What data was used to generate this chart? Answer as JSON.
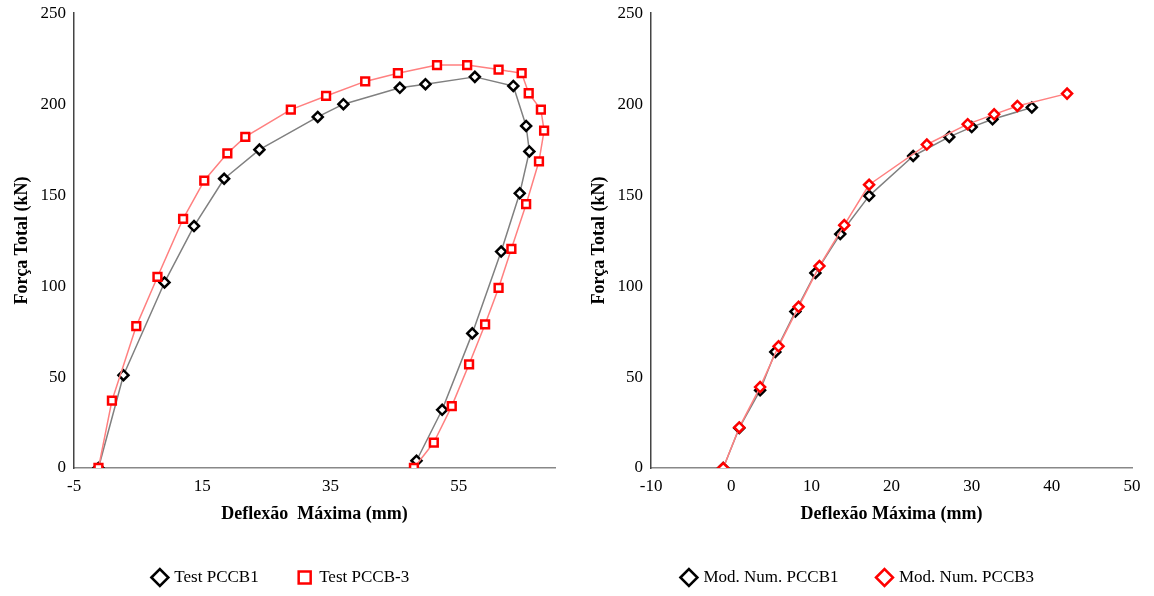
{
  "chart_data": [
    {
      "type": "line",
      "xlabel": "Deflexão  Máxima (mm)",
      "ylabel": "Força Total (kN)",
      "xlim": [
        -5,
        70
      ],
      "xticks": [
        -5,
        15,
        35,
        55
      ],
      "ylim": [
        0,
        250
      ],
      "yticks": [
        0,
        50,
        100,
        150,
        200,
        250
      ],
      "grid": false,
      "legend": "bottom",
      "line_style": "solid",
      "series": [
        {
          "name": "Test PCCB1",
          "color": "#808080",
          "colors": [
            "#000000",
            "#000000",
            "#000000",
            "#000000",
            "#000000",
            "#000000",
            "#000000",
            "#000000",
            "#000000",
            "#000000",
            "#000000",
            "#000000",
            "#000000",
            "#000000",
            "#000000",
            "#000000",
            "#000000",
            "#000000",
            "#000000"
          ],
          "marker": "diamond",
          "x": [
            -1.2,
            2.7,
            9.1,
            13.7,
            18.4,
            23.9,
            33.0,
            37.0,
            45.8,
            49.8,
            57.5,
            63.5,
            65.5,
            66.0,
            64.5,
            61.6,
            57.1,
            52.4,
            48.4
          ],
          "values": [
            0,
            51,
            102,
            133,
            159,
            175,
            193,
            200,
            209,
            211,
            215,
            210,
            188,
            174,
            151,
            119,
            74,
            32,
            4
          ]
        },
        {
          "name": "Test PCCB-3",
          "color": "#ff8080",
          "colors": [
            "#ff0000",
            "#ff0000",
            "#ff0000",
            "#ff0000",
            "#ff0000",
            "#ff0000",
            "#ff0000",
            "#ff0000",
            "#ff0000",
            "#ff0000",
            "#ff0000",
            "#ff0000",
            "#ff0000",
            "#ff0000",
            "#ff0000",
            "#ff0000",
            "#ff0000",
            "#ff0000",
            "#ff0000",
            "#ff0000",
            "#ff0000",
            "#ff0000",
            "#ff0000",
            "#ff0000",
            "#ff0000",
            "#ff0000",
            "#ff0000",
            "#ff0000"
          ],
          "marker": "square",
          "x": [
            -1.2,
            0.9,
            4.7,
            8.0,
            12.0,
            15.3,
            18.9,
            21.7,
            28.8,
            34.3,
            40.4,
            45.5,
            51.6,
            56.3,
            61.2,
            64.8,
            65.9,
            67.8,
            68.3,
            67.5,
            65.5,
            63.2,
            61.2,
            59.1,
            56.6,
            53.9,
            51.1,
            48.0
          ],
          "values": [
            0,
            37,
            78,
            105,
            137,
            158,
            173,
            182,
            197,
            204.5,
            212.5,
            217,
            221.5,
            221.5,
            219,
            217,
            206,
            197,
            185.5,
            168.6,
            145,
            120.5,
            99,
            79,
            57,
            34,
            14,
            0
          ]
        }
      ]
    },
    {
      "type": "line",
      "xlabel": "Deflexão Máxima (mm)",
      "ylabel": "Força Total (kN)",
      "xlim": [
        -10,
        50
      ],
      "xticks": [
        -10,
        0,
        10,
        20,
        30,
        40,
        50
      ],
      "ylim": [
        0,
        250
      ],
      "yticks": [
        0,
        50,
        100,
        150,
        200,
        250
      ],
      "grid": false,
      "legend": "bottom",
      "line_style": "solid",
      "series": [
        {
          "name": "Mod. Num. PCCB1",
          "color": "#808080",
          "colors": [
            "#000000",
            "#000000",
            "#000000",
            "#000000",
            "#000000",
            "#000000",
            "#000000",
            "#000000",
            "#000000",
            "#000000",
            "#000000",
            "#000000",
            "#000000"
          ],
          "marker": "diamond",
          "x": [
            -1.0,
            1.0,
            3.6,
            5.5,
            8.0,
            10.5,
            13.6,
            17.2,
            22.7,
            27.2,
            30.0,
            32.6,
            37.5
          ],
          "values": [
            0,
            22,
            42.7,
            63.8,
            86,
            107.2,
            128.6,
            149.6,
            171.5,
            182,
            187.4,
            191.7,
            198.2
          ]
        },
        {
          "name": "Mod. Num. PCCB3",
          "color": "#ff8080",
          "colors": [
            "#ff0000",
            "#ff0000",
            "#ff0000",
            "#ff0000",
            "#ff0000",
            "#ff0000",
            "#ff0000",
            "#ff0000",
            "#ff0000",
            "#ff0000",
            "#ff0000",
            "#ff0000",
            "#ff0000"
          ],
          "marker": "diamond",
          "x": [
            -1.0,
            1.0,
            3.6,
            5.9,
            8.4,
            11.0,
            14.1,
            17.2,
            24.4,
            29.5,
            32.8,
            35.7,
            41.9
          ],
          "values": [
            0,
            22.3,
            44.5,
            66.9,
            88.6,
            111,
            133.5,
            155.7,
            177.8,
            189,
            194.4,
            199,
            205.8
          ]
        }
      ]
    }
  ]
}
